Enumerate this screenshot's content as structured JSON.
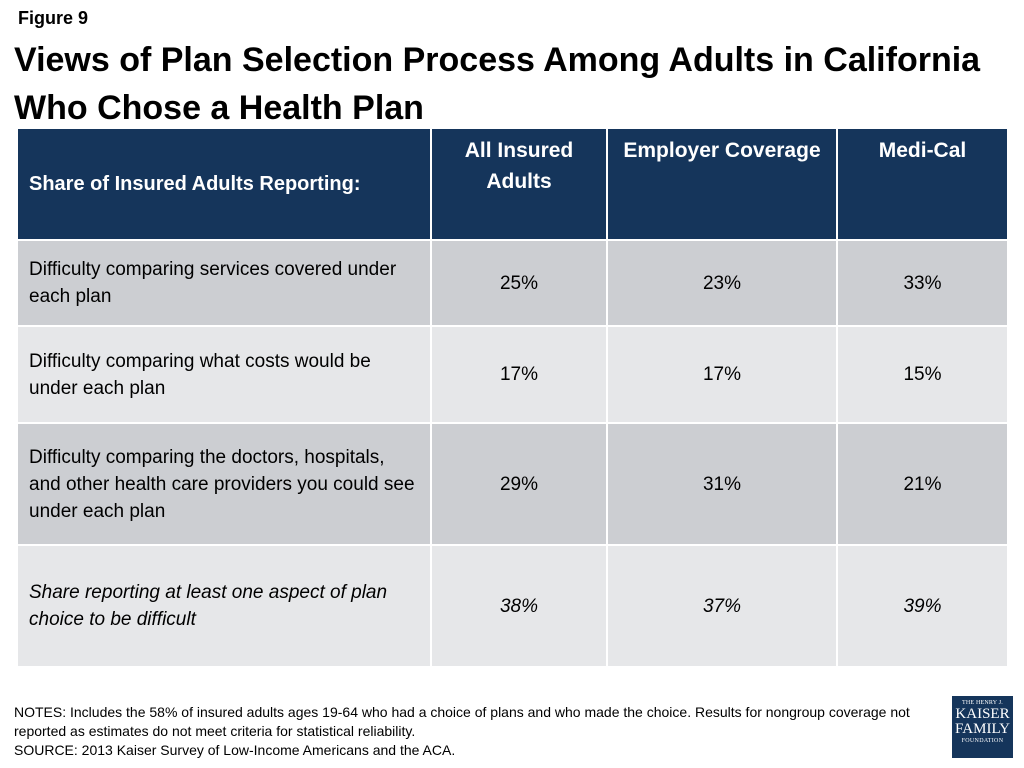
{
  "figure_label": "Figure 9",
  "title": "Views of Plan Selection Process Among Adults in California Who Chose a Health Plan",
  "chart_data": {
    "type": "table",
    "row_header_label": "Share of Insured Adults Reporting:",
    "columns": [
      "All Insured Adults",
      "Employer Coverage",
      "Medi-Cal"
    ],
    "rows": [
      {
        "label": "Difficulty comparing services covered under each plan",
        "values": [
          "25%",
          "23%",
          "33%"
        ]
      },
      {
        "label": "Difficulty comparing what costs would be under each plan",
        "values": [
          "17%",
          "17%",
          "15%"
        ]
      },
      {
        "label": "Difficulty comparing the doctors, hospitals, and other health care providers you could see under each plan",
        "values": [
          "29%",
          "31%",
          "21%"
        ]
      },
      {
        "label": "Share reporting at least one aspect of plan choice to be difficult",
        "values": [
          "38%",
          "37%",
          "39%"
        ],
        "italic": true
      }
    ]
  },
  "notes": "NOTES: Includes the 58% of insured adults ages 19-64 who had a choice of plans and who made the choice. Results for nongroup coverage not reported as estimates do not meet criteria for statistical reliability.",
  "source": "SOURCE: 2013 Kaiser Survey of Low-Income Americans and the ACA.",
  "logo": {
    "line1": "THE HENRY J.",
    "line2": "KAISER",
    "line3": "FAMILY",
    "line4": "FOUNDATION"
  },
  "colors": {
    "header_bg": "#15355b",
    "row_dark": "#ccced2",
    "row_light": "#e6e7e9"
  }
}
